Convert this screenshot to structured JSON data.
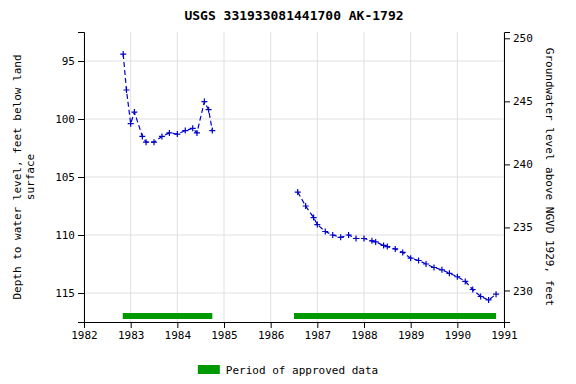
{
  "chart_data": {
    "type": "line",
    "title": "USGS 331933081441700 AK-1792",
    "y_label": "Depth to water level, feet below land\nsurface",
    "y2_label": "Groundwater level above NGVD 1929, feet",
    "xlim": [
      1982,
      1991
    ],
    "xticks": [
      1982,
      1983,
      1984,
      1985,
      1986,
      1987,
      1988,
      1989,
      1990,
      1991
    ],
    "ylim": [
      117.5,
      92.5
    ],
    "yticks": [
      95,
      100,
      105,
      110,
      115
    ],
    "y2lim": [
      227.5,
      250.5
    ],
    "y2ticks": [
      250,
      245,
      240,
      235,
      230
    ],
    "grid": true,
    "series": [
      {
        "type": "line",
        "color": "#0000cc",
        "line_style": "dashed",
        "marker": "plus",
        "x": [
          1982.84,
          1982.91,
          1983.0,
          1983.08,
          1983.25,
          1983.33,
          1983.5,
          1983.67,
          1983.83,
          1984.0,
          1984.17,
          1984.33,
          1984.42,
          1984.58,
          1984.67,
          1984.75
        ],
        "values": [
          94.4,
          97.5,
          100.4,
          99.4,
          101.5,
          102.0,
          102.0,
          101.5,
          101.2,
          101.3,
          101.0,
          100.8,
          101.2,
          98.5,
          99.2,
          101.0
        ]
      },
      {
        "type": "line",
        "color": "#0000cc",
        "line_style": "dashed",
        "marker": "plus",
        "x": [
          1986.58,
          1986.75,
          1986.92,
          1987.0,
          1987.17,
          1987.33,
          1987.5,
          1987.67,
          1987.83,
          1988.0,
          1988.17,
          1988.25,
          1988.42,
          1988.5,
          1988.67,
          1988.83,
          1989.0,
          1989.17,
          1989.33,
          1989.5,
          1989.67,
          1989.83,
          1990.0,
          1990.17,
          1990.33,
          1990.5,
          1990.67,
          1990.83
        ],
        "values": [
          106.3,
          107.5,
          108.5,
          109.1,
          109.7,
          110.0,
          110.2,
          110.0,
          110.3,
          110.3,
          110.5,
          110.6,
          110.9,
          111.0,
          111.2,
          111.5,
          112.0,
          112.2,
          112.5,
          112.8,
          113.0,
          113.3,
          113.6,
          114.0,
          114.7,
          115.3,
          115.6,
          115.1
        ]
      },
      {
        "type": "range",
        "name": "Period of approved data",
        "color": "#009900",
        "ranges": [
          [
            1982.83,
            1984.75
          ],
          [
            1986.5,
            1990.83
          ]
        ]
      }
    ]
  }
}
